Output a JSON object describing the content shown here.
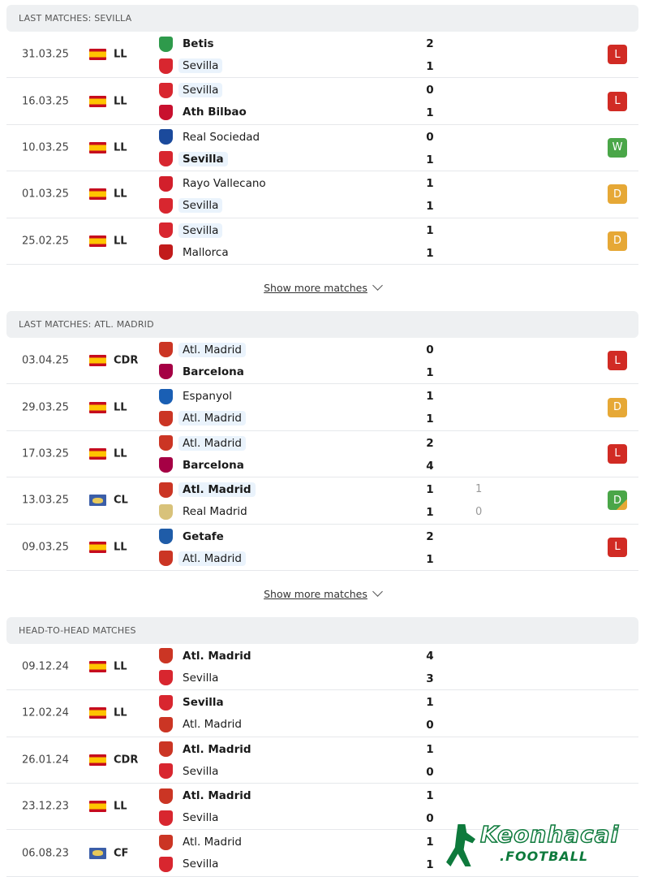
{
  "sections": [
    {
      "title": "LAST MATCHES: SEVILLA",
      "show_more": "Show more matches",
      "matches": [
        {
          "date": "31.03.25",
          "flag": "es",
          "comp": "LL",
          "home": "Betis",
          "away": "Sevilla",
          "hs": "2",
          "as": "1",
          "win": "home",
          "hl": "away",
          "result": "L"
        },
        {
          "date": "16.03.25",
          "flag": "es",
          "comp": "LL",
          "home": "Sevilla",
          "away": "Ath Bilbao",
          "hs": "0",
          "as": "1",
          "win": "away",
          "hl": "home",
          "result": "L"
        },
        {
          "date": "10.03.25",
          "flag": "es",
          "comp": "LL",
          "home": "Real Sociedad",
          "away": "Sevilla",
          "hs": "0",
          "as": "1",
          "win": "away",
          "hl": "away",
          "result": "W"
        },
        {
          "date": "01.03.25",
          "flag": "es",
          "comp": "LL",
          "home": "Rayo Vallecano",
          "away": "Sevilla",
          "hs": "1",
          "as": "1",
          "win": "",
          "hl": "away",
          "result": "D"
        },
        {
          "date": "25.02.25",
          "flag": "es",
          "comp": "LL",
          "home": "Sevilla",
          "away": "Mallorca",
          "hs": "1",
          "as": "1",
          "win": "",
          "hl": "home",
          "result": "D"
        }
      ]
    },
    {
      "title": "LAST MATCHES: ATL. MADRID",
      "show_more": "Show more matches",
      "matches": [
        {
          "date": "03.04.25",
          "flag": "es",
          "comp": "CDR",
          "home": "Atl. Madrid",
          "away": "Barcelona",
          "hs": "0",
          "as": "1",
          "win": "away",
          "hl": "home",
          "result": "L"
        },
        {
          "date": "29.03.25",
          "flag": "es",
          "comp": "LL",
          "home": "Espanyol",
          "away": "Atl. Madrid",
          "hs": "1",
          "as": "1",
          "win": "",
          "hl": "away",
          "result": "D"
        },
        {
          "date": "17.03.25",
          "flag": "es",
          "comp": "LL",
          "home": "Atl. Madrid",
          "away": "Barcelona",
          "hs": "2",
          "as": "4",
          "win": "away",
          "hl": "home",
          "result": "L"
        },
        {
          "date": "13.03.25",
          "flag": "world",
          "comp": "CL",
          "home": "Atl. Madrid",
          "away": "Real Madrid",
          "hs": "1",
          "as": "1",
          "hp": "1",
          "ap": "0",
          "win": "home",
          "hl": "home",
          "result": "D",
          "result_style": "DW"
        },
        {
          "date": "09.03.25",
          "flag": "es",
          "comp": "LL",
          "home": "Getafe",
          "away": "Atl. Madrid",
          "hs": "2",
          "as": "1",
          "win": "home",
          "hl": "away",
          "result": "L"
        }
      ]
    },
    {
      "title": "HEAD-TO-HEAD MATCHES",
      "matches": [
        {
          "date": "09.12.24",
          "flag": "es",
          "comp": "LL",
          "home": "Atl. Madrid",
          "away": "Sevilla",
          "hs": "4",
          "as": "3",
          "win": "home",
          "hl": ""
        },
        {
          "date": "12.02.24",
          "flag": "es",
          "comp": "LL",
          "home": "Sevilla",
          "away": "Atl. Madrid",
          "hs": "1",
          "as": "0",
          "win": "home",
          "hl": ""
        },
        {
          "date": "26.01.24",
          "flag": "es",
          "comp": "CDR",
          "home": "Atl. Madrid",
          "away": "Sevilla",
          "hs": "1",
          "as": "0",
          "win": "home",
          "hl": ""
        },
        {
          "date": "23.12.23",
          "flag": "es",
          "comp": "LL",
          "home": "Atl. Madrid",
          "away": "Sevilla",
          "hs": "1",
          "as": "0",
          "win": "home",
          "hl": ""
        },
        {
          "date": "06.08.23",
          "flag": "world",
          "comp": "CF",
          "home": "Atl. Madrid",
          "away": "Sevilla",
          "hs": "1",
          "as": "1",
          "win": "",
          "hl": ""
        }
      ]
    }
  ],
  "crest_colors": {
    "Betis": "#2e9a4b",
    "Sevilla": "#d8262f",
    "Ath Bilbao": "#c8102e",
    "Real Sociedad": "#1b4a9c",
    "Rayo Vallecano": "#d21f2b",
    "Mallorca": "#c21b1b",
    "Atl. Madrid": "#cb3524",
    "Barcelona": "#a50044",
    "Espanyol": "#1a5fb4",
    "Real Madrid": "#d8c27a",
    "Getafe": "#1f5ca8"
  },
  "watermark": {
    "line1": "Keonhacai",
    "line2": ".FOOTBALL"
  }
}
